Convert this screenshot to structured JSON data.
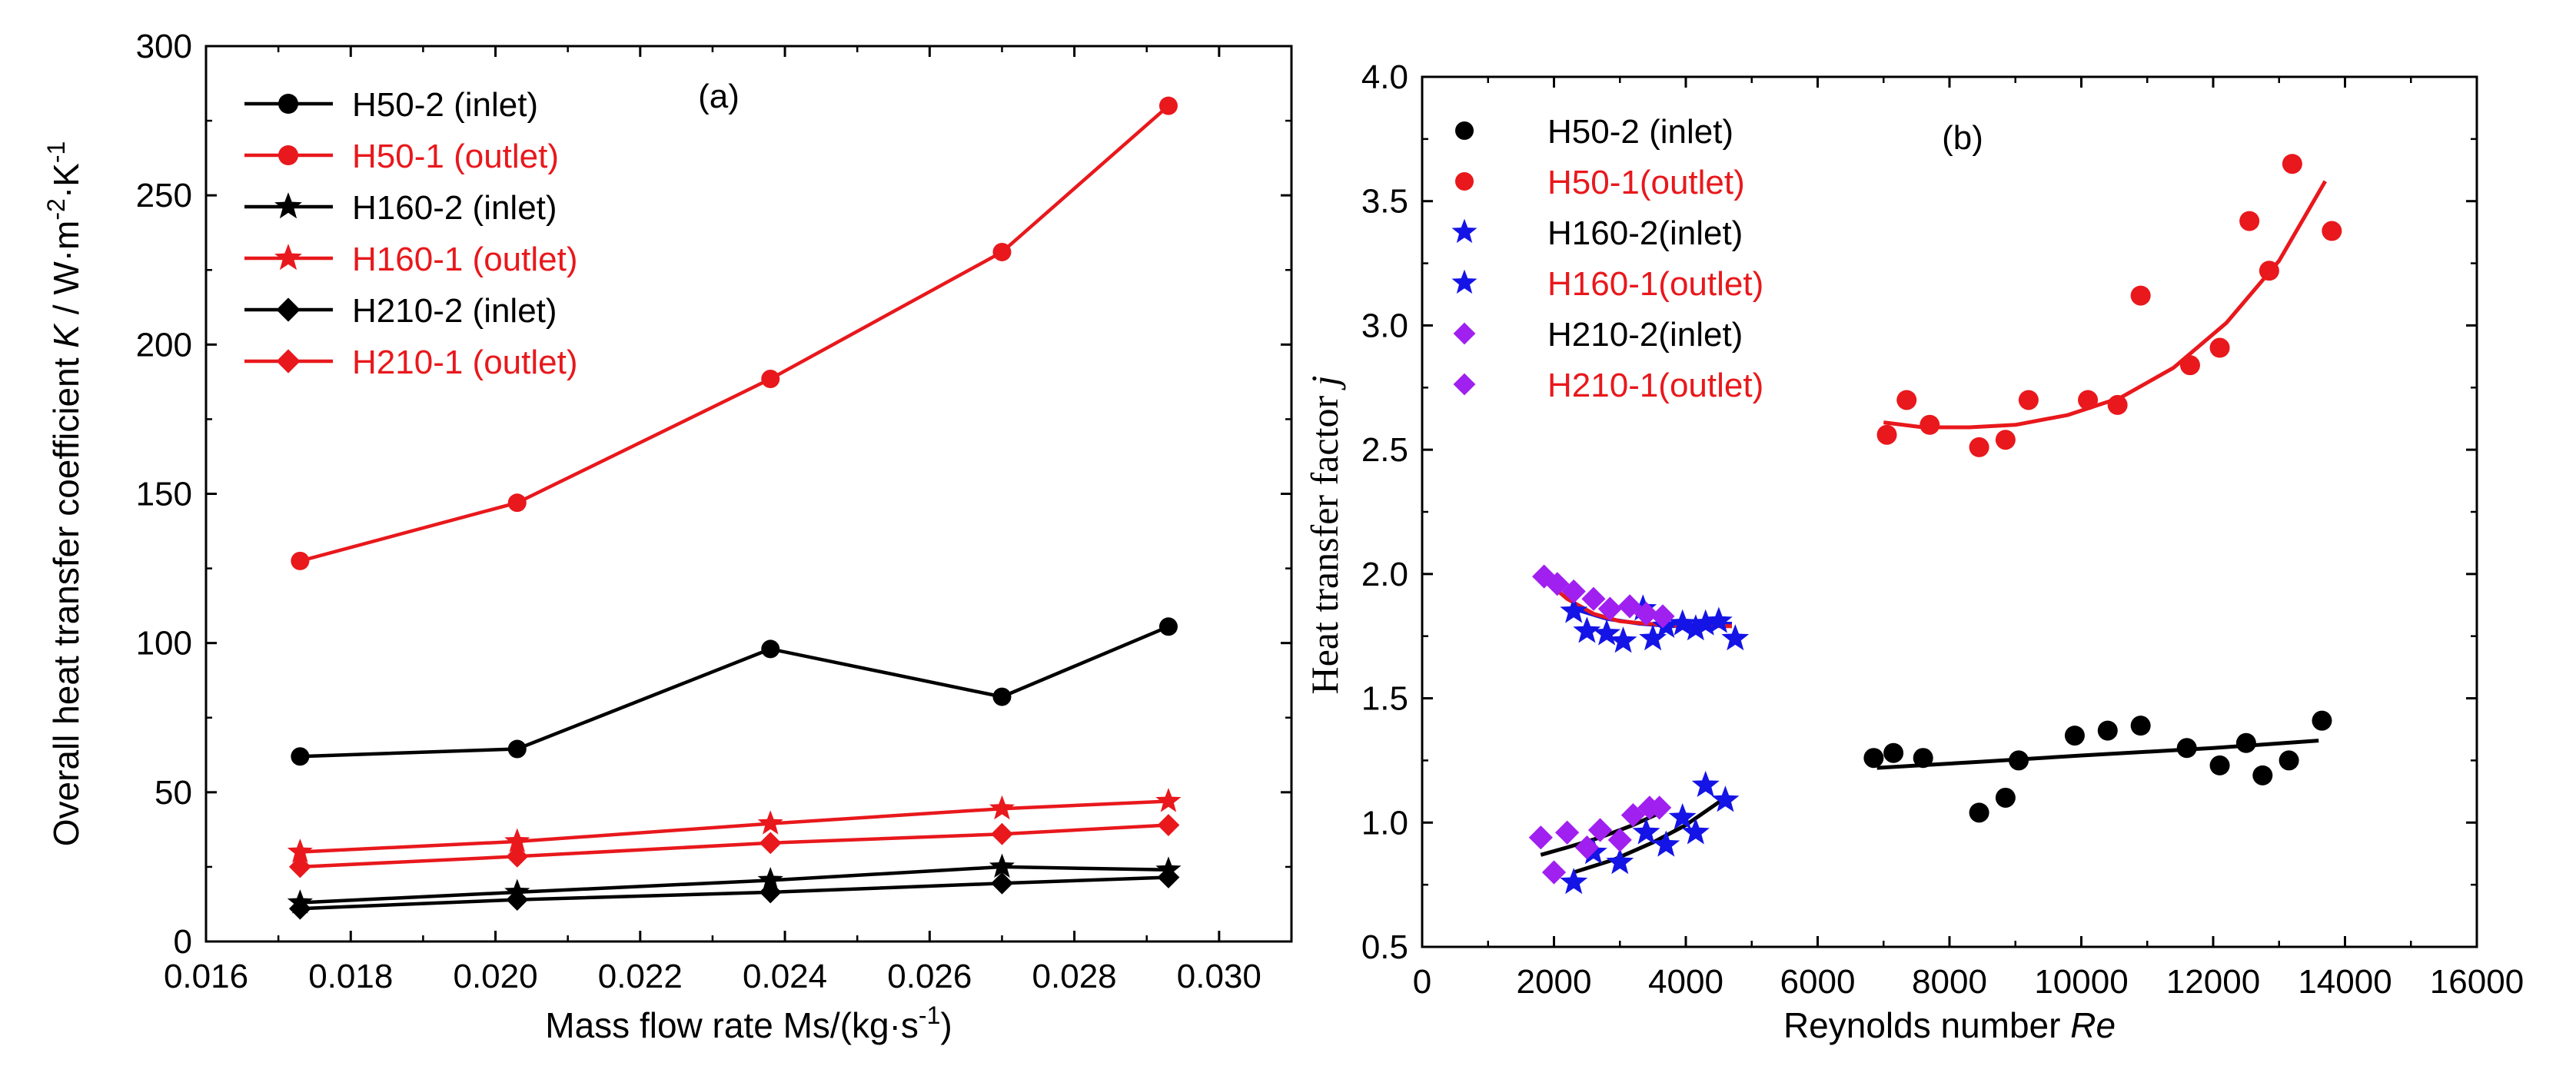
{
  "chart_data": [
    {
      "panel": "a",
      "type": "line",
      "title": "(a)",
      "xlabel_text": "Mass flow rate Ms/(kg·s",
      "xlabel_sup": "-1",
      "xlabel_close": ")",
      "ylabel_parts": [
        "Overall heat transfer coefficient ",
        "K",
        " / W·m",
        "-2",
        "·K",
        "-1"
      ],
      "xlim": [
        0.016,
        0.031
      ],
      "ylim": [
        0,
        300
      ],
      "xticks": [
        "0.016",
        "0.018",
        "0.020",
        "0.022",
        "0.024",
        "0.026",
        "0.028",
        "0.030"
      ],
      "yticks": [
        "0",
        "50",
        "100",
        "150",
        "200",
        "250",
        "300"
      ],
      "legend_position": "top-left",
      "x": [
        0.0173,
        0.0203,
        0.0238,
        0.027,
        0.0293
      ],
      "series": [
        {
          "name": "H50-2 (inlet)",
          "color": "#000000",
          "marker": "circle",
          "values": [
            62,
            64.5,
            98,
            82,
            105.5
          ]
        },
        {
          "name": "H50-1 (outlet)",
          "color": "#e8181c",
          "marker": "circle",
          "values": [
            127.5,
            147,
            188.5,
            231,
            280
          ]
        },
        {
          "name": "H160-2 (inlet)",
          "color": "#000000",
          "marker": "star",
          "values": [
            13,
            16.5,
            20.5,
            25,
            24
          ]
        },
        {
          "name": "H160-1 (outlet)",
          "color": "#e8181c",
          "marker": "star",
          "values": [
            30,
            33.5,
            39.5,
            44.5,
            47
          ]
        },
        {
          "name": "H210-2 (inlet)",
          "color": "#000000",
          "marker": "diamond",
          "values": [
            11,
            14,
            16.5,
            19.5,
            21.5
          ]
        },
        {
          "name": "H210-1 (outlet)",
          "color": "#e8181c",
          "marker": "diamond",
          "values": [
            25,
            28.5,
            33,
            36,
            39
          ]
        }
      ]
    },
    {
      "panel": "b",
      "type": "scatter",
      "title": "(b)",
      "xlabel_text": "Reynolds number ",
      "xlabel_italic": "Re",
      "ylabel_text": "Heat transfer factor ",
      "ylabel_italic": "j",
      "xlim": [
        0,
        16000
      ],
      "ylim": [
        0.5,
        4.0
      ],
      "xticks": [
        "0",
        "2000",
        "4000",
        "6000",
        "8000",
        "10000",
        "12000",
        "14000",
        "16000"
      ],
      "yticks": [
        "0.5",
        "1.0",
        "1.5",
        "2.0",
        "2.5",
        "3.0",
        "3.5",
        "4.0"
      ],
      "legend_position": "top-left",
      "series": [
        {
          "name": "H50-2 (inlet)",
          "color": "#000000",
          "legend_color": "#000000",
          "marker": "circle",
          "points": [
            [
              6850,
              1.26
            ],
            [
              7150,
              1.28
            ],
            [
              7600,
              1.26
            ],
            [
              8450,
              1.04
            ],
            [
              8850,
              1.1
            ],
            [
              9050,
              1.25
            ],
            [
              9900,
              1.35
            ],
            [
              10400,
              1.37
            ],
            [
              10900,
              1.39
            ],
            [
              11600,
              1.3
            ],
            [
              12100,
              1.23
            ],
            [
              12500,
              1.32
            ],
            [
              12750,
              1.19
            ],
            [
              13150,
              1.25
            ],
            [
              13650,
              1.41
            ]
          ],
          "fit": {
            "color": "#000000",
            "points": [
              [
                6900,
                1.22
              ],
              [
                8500,
                1.245
              ],
              [
                10000,
                1.27
              ],
              [
                12000,
                1.3
              ],
              [
                13600,
                1.33
              ]
            ]
          }
        },
        {
          "name": "H50-1(outlet)",
          "color": "#e8181c",
          "legend_color": "#e8181c",
          "marker": "circle",
          "points": [
            [
              7050,
              2.56
            ],
            [
              7350,
              2.7
            ],
            [
              7700,
              2.6
            ],
            [
              8450,
              2.51
            ],
            [
              8850,
              2.54
            ],
            [
              9200,
              2.7
            ],
            [
              10100,
              2.7
            ],
            [
              10550,
              2.68
            ],
            [
              10900,
              3.12
            ],
            [
              11650,
              2.84
            ],
            [
              12100,
              2.91
            ],
            [
              12550,
              3.42
            ],
            [
              12850,
              3.22
            ],
            [
              13200,
              3.65
            ],
            [
              13800,
              3.38
            ]
          ],
          "fit": {
            "color": "#e8181c",
            "points": [
              [
                7000,
                2.61
              ],
              [
                7600,
                2.59
              ],
              [
                8300,
                2.59
              ],
              [
                9000,
                2.6
              ],
              [
                9800,
                2.64
              ],
              [
                10600,
                2.71
              ],
              [
                11400,
                2.83
              ],
              [
                12200,
                3.01
              ],
              [
                13000,
                3.26
              ],
              [
                13700,
                3.58
              ]
            ]
          }
        },
        {
          "name": "H160-2(inlet)",
          "color": "#1414e6",
          "legend_color": "#000000",
          "marker": "star",
          "points": [
            [
              2300,
              0.76
            ],
            [
              2600,
              0.88
            ],
            [
              3000,
              0.84
            ],
            [
              3400,
              0.96
            ],
            [
              3700,
              0.91
            ],
            [
              3950,
              1.02
            ],
            [
              4150,
              0.96
            ],
            [
              4300,
              1.15
            ],
            [
              4600,
              1.09
            ]
          ],
          "fit": {
            "color": "#000000",
            "points": [
              [
                2300,
                0.8
              ],
              [
                2900,
                0.85
              ],
              [
                3500,
                0.92
              ],
              [
                4000,
                0.99
              ],
              [
                4600,
                1.1
              ]
            ]
          }
        },
        {
          "name": "H160-1(outlet)",
          "color": "#1414e6",
          "legend_color": "#e8181c",
          "marker": "star",
          "points": [
            [
              2300,
              1.85
            ],
            [
              2500,
              1.77
            ],
            [
              2800,
              1.76
            ],
            [
              3050,
              1.73
            ],
            [
              3350,
              1.86
            ],
            [
              3500,
              1.74
            ],
            [
              3700,
              1.79
            ],
            [
              3950,
              1.8
            ],
            [
              4150,
              1.78
            ],
            [
              4300,
              1.8
            ],
            [
              4500,
              1.81
            ],
            [
              4750,
              1.74
            ]
          ],
          "fit": {
            "color": "#1414e6",
            "points": [
              [
                2300,
                1.86
              ],
              [
                2800,
                1.82
              ],
              [
                3300,
                1.8
              ],
              [
                3800,
                1.79
              ],
              [
                4300,
                1.8
              ],
              [
                4700,
                1.8
              ]
            ]
          }
        },
        {
          "name": "H210-2(inlet)",
          "color": "#a020f0",
          "legend_color": "#000000",
          "marker": "diamond",
          "points": [
            [
              1800,
              0.94
            ],
            [
              2000,
              0.8
            ],
            [
              2200,
              0.96
            ],
            [
              2500,
              0.9
            ],
            [
              2700,
              0.97
            ],
            [
              3000,
              0.93
            ],
            [
              3200,
              1.03
            ],
            [
              3450,
              1.06
            ],
            [
              3600,
              1.06
            ]
          ],
          "fit": {
            "color": "#000000",
            "points": [
              [
                1800,
                0.87
              ],
              [
                2200,
                0.9
              ],
              [
                2700,
                0.94
              ],
              [
                3200,
                0.99
              ],
              [
                3700,
                1.05
              ]
            ]
          }
        },
        {
          "name": "H210-1(outlet)",
          "color": "#a020f0",
          "legend_color": "#e8181c",
          "marker": "diamond",
          "points": [
            [
              1850,
              1.99
            ],
            [
              2050,
              1.96
            ],
            [
              2300,
              1.93
            ],
            [
              2600,
              1.9
            ],
            [
              2850,
              1.86
            ],
            [
              3150,
              1.87
            ],
            [
              3400,
              1.84
            ],
            [
              3650,
              1.83
            ]
          ],
          "fit": {
            "color": "#e8181c",
            "points": [
              [
                1800,
                1.99
              ],
              [
                2200,
                1.9
              ],
              [
                2600,
                1.84
              ],
              [
                3000,
                1.81
              ],
              [
                3400,
                1.8
              ],
              [
                4000,
                1.79
              ],
              [
                4700,
                1.79
              ]
            ]
          }
        }
      ]
    }
  ]
}
